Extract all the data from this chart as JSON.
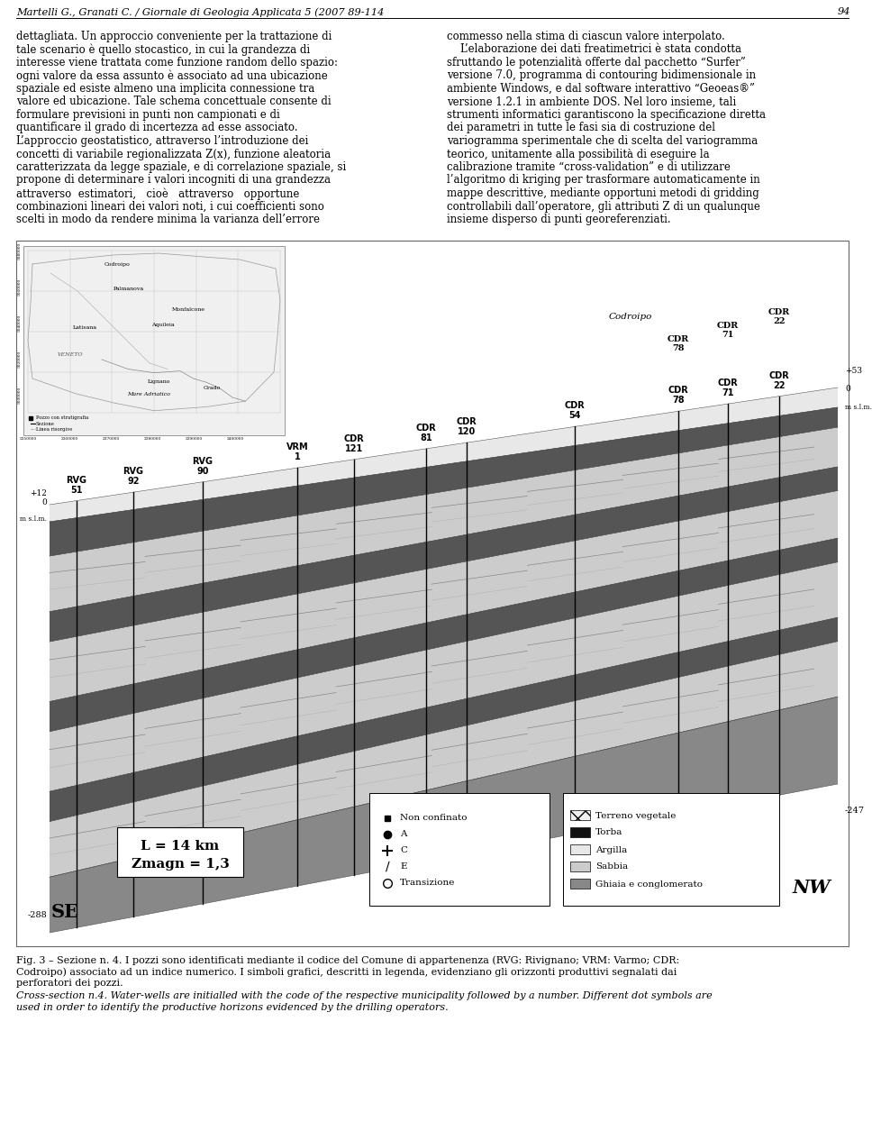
{
  "page_header": "Martelli G., Granati C. / Giornale di Geologia Applicata 5 (2007 89-114",
  "page_number": "94",
  "background_color": "#ffffff",
  "left_col_text": [
    "dettagliata. Un approccio conveniente per la trattazione di",
    "tale scenario è quello stocastico, in cui la grandezza di",
    "interesse viene trattata come funzione random dello spazio:",
    "ogni valore da essa assunto è associato ad una ubicazione",
    "spaziale ed esiste almeno una implicita connessione tra",
    "valore ed ubicazione. Tale schema concettuale consente di",
    "formulare previsioni in punti non campionati e di",
    "quantificare il grado di incertezza ad esse associato.",
    "L’approccio geostatistico, attraverso l’introduzione dei",
    "concetti di variabile regionalizzata Z(x), funzione aleatoria",
    "caratterizzata da legge spaziale, e di correlazione spaziale, si",
    "propone di determinare i valori incogniti di una grandezza",
    "attraverso  estimatori,   cioè   attraverso   opportune",
    "combinazioni lineari dei valori noti, i cui coefficienti sono",
    "scelti in modo da rendere minima la varianza dell’errore"
  ],
  "right_col_text": [
    "commesso nella stima di ciascun valore interpolato.",
    "    L’elaborazione dei dati freatimetrici è stata condotta",
    "sfruttando le potenzialità offerte dal pacchetto “Surfer”",
    "versione 7.0, programma di contouring bidimensionale in",
    "ambiente Windows, e dal software interattivo “Geoeas®”",
    "versione 1.2.1 in ambiente DOS. Nel loro insieme, tali",
    "strumenti informatici garantiscono la specificazione diretta",
    "dei parametri in tutte le fasi sia di costruzione del",
    "variogramma sperimentale che di scelta del variogramma",
    "teorico, unitamente alla possibilità di eseguire la",
    "calibrazione tramite “cross-validation” e di utilizzare",
    "l’algoritmo di kriging per trasformare automaticamente in",
    "mappe descrittive, mediante opportuni metodi di gridding",
    "controllabili dall’operatore, gli attributi Z di un qualunque",
    "insieme disperso di punti georeferenziati."
  ],
  "fig_caption1": "Fig. 3 – Sezione n. 4. I pozzi sono identificati mediante il codice del Comune di appartenenza (RVG: Rivignano; VRM: Varmo; CDR:",
  "fig_caption2": "Codroipo) associato ad un indice numerico. I simboli grafici, descritti in legenda, evidenziano gli orizzonti produttivi segnalati dai",
  "fig_caption3": "perforatori dei pozzi.",
  "fig_caption4": "Cross-section n.4. Water-wells are initialled with the code of the respective municipality followed by a number. Different dot symbols are",
  "fig_caption5": "used in order to identify the productive horizons evidenced by the drilling operators."
}
